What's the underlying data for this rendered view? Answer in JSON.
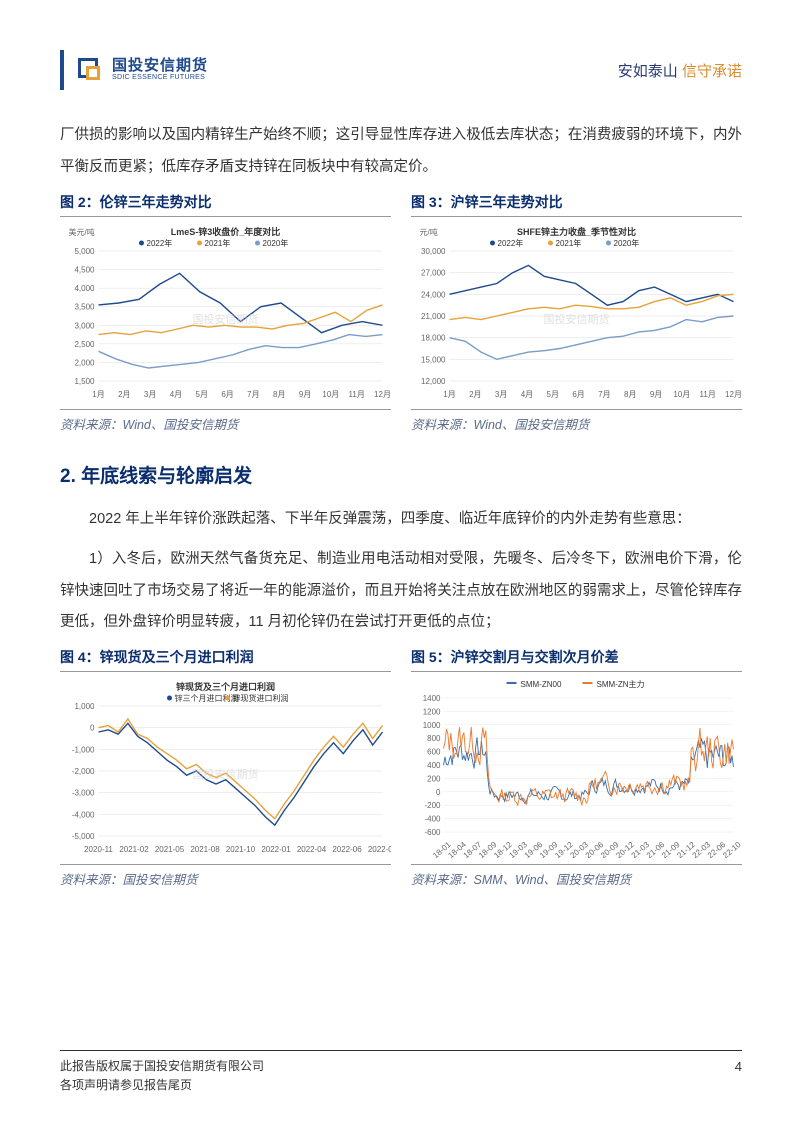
{
  "header": {
    "logo_cn": "国投安信期货",
    "logo_en": "SDIC ESSENCE FUTURES",
    "slogan1": "安如泰山",
    "slogan2": "信守承诺"
  },
  "para1": "厂供损的影响以及国内精锌生产始终不顺；这引导显性库存进入极低去库状态；在消费疲弱的环境下，内外平衡反而更紧；低库存矛盾支持锌在同板块中有较高定价。",
  "chart2": {
    "title": "图 2：伦锌三年走势对比",
    "inner_title": "LmeS-锌3收盘价_年度对比",
    "ylabel": "美元/吨",
    "legend": [
      "2022年",
      "2021年",
      "2020年"
    ],
    "colors": [
      "#1e4a8c",
      "#e8a13a",
      "#7a9cc6"
    ],
    "ylim": [
      1500,
      5000
    ],
    "yticks": [
      1500,
      2000,
      2500,
      3000,
      3500,
      4000,
      4500,
      5000
    ],
    "xlabels": [
      "1月",
      "2月",
      "3月",
      "4月",
      "5月",
      "6月",
      "7月",
      "8月",
      "9月",
      "10月",
      "11月",
      "12月"
    ],
    "s2022": [
      3550,
      3600,
      3700,
      4100,
      4400,
      3900,
      3600,
      3100,
      3500,
      3600,
      3200,
      2800,
      3000,
      3100,
      3000
    ],
    "s2021": [
      2750,
      2800,
      2750,
      2850,
      2800,
      2900,
      3000,
      2950,
      3000,
      2950,
      2950,
      2900,
      3000,
      3050,
      3200,
      3350,
      3100,
      3400,
      3550
    ],
    "s2020": [
      2300,
      2100,
      1950,
      1850,
      1900,
      1950,
      2000,
      2100,
      2200,
      2350,
      2450,
      2400,
      2400,
      2500,
      2600,
      2750,
      2700,
      2750
    ],
    "source": "资料来源：Wind、国投安信期货",
    "watermark": "国投安信期货"
  },
  "chart3": {
    "title": "图 3：沪锌三年走势对比",
    "inner_title": "SHFE锌主力收盘_季节性对比",
    "ylabel": "元/吨",
    "legend": [
      "2022年",
      "2021年",
      "2020年"
    ],
    "colors": [
      "#1e4a8c",
      "#e8a13a",
      "#7a9cc6"
    ],
    "ylim": [
      12000,
      30000
    ],
    "yticks": [
      12000,
      15000,
      18000,
      21000,
      24000,
      27000,
      30000
    ],
    "xlabels": [
      "1月",
      "2月",
      "3月",
      "4月",
      "5月",
      "6月",
      "7月",
      "8月",
      "9月",
      "10月",
      "11月",
      "12月"
    ],
    "s2022": [
      24000,
      24500,
      25000,
      25500,
      27000,
      28000,
      26500,
      26000,
      25500,
      24000,
      22500,
      23000,
      24500,
      25000,
      24000,
      23000,
      23500,
      24000,
      23000
    ],
    "s2021": [
      20500,
      20800,
      20500,
      21000,
      21500,
      22000,
      22200,
      22000,
      22500,
      22300,
      22000,
      22000,
      22200,
      23000,
      23500,
      22500,
      23000,
      23800,
      24000
    ],
    "s2020": [
      18000,
      17500,
      16000,
      15000,
      15500,
      16000,
      16200,
      16500,
      17000,
      17500,
      18000,
      18200,
      18800,
      19000,
      19500,
      20500,
      20200,
      20800,
      21000
    ],
    "source": "资料来源：Wind、国投安信期货",
    "watermark": "国投安信期货"
  },
  "section2_heading": "2. 年底线索与轮廓启发",
  "para2": "2022 年上半年锌价涨跌起落、下半年反弹震荡，四季度、临近年底锌价的内外走势有些意思：",
  "para3": "1）入冬后，欧洲天然气备货充足、制造业用电活动相对受限，先暖冬、后冷冬下，欧洲电价下滑，伦锌快速回吐了市场交易了将近一年的能源溢价，而且开始将关注点放在欧洲地区的弱需求上，尽管伦锌库存更低，但外盘锌价明显转疲，11 月初伦锌仍在尝试打开更低的点位；",
  "chart4": {
    "title": "图 4：锌现货及三个月进口利润",
    "inner_title": "锌现货及三个月进口利润",
    "legend": [
      "锌三个月进口利润",
      "锌现货进口利润"
    ],
    "colors": [
      "#1e4a8c",
      "#e8a13a"
    ],
    "ylim": [
      -5000,
      1000
    ],
    "yticks": [
      -5000,
      -4000,
      -3000,
      -2000,
      -1000,
      0,
      1000
    ],
    "xlabels": [
      "2020-11",
      "2021-02",
      "2021-05",
      "2021-08",
      "2021-10",
      "2022-01",
      "2022-04",
      "2022-06",
      "2022-09"
    ],
    "s1": [
      -200,
      -100,
      -300,
      200,
      -400,
      -700,
      -1100,
      -1500,
      -1800,
      -2200,
      -2000,
      -2400,
      -2600,
      -2400,
      -2800,
      -3200,
      -3600,
      -4100,
      -4500,
      -3800,
      -3200,
      -2500,
      -1800,
      -1200,
      -700,
      -1200,
      -600,
      -100,
      -800,
      -200
    ],
    "s2": [
      0,
      100,
      -200,
      400,
      -300,
      -500,
      -900,
      -1200,
      -1500,
      -1900,
      -1700,
      -2100,
      -2300,
      -2100,
      -2500,
      -2900,
      -3300,
      -3800,
      -4200,
      -3500,
      -2900,
      -2200,
      -1500,
      -900,
      -400,
      -900,
      -300,
      200,
      -500,
      100
    ],
    "source": "资料来源：国投安信期货",
    "watermark": "国投安信期货"
  },
  "chart5": {
    "title": "图 5：沪锌交割月与交割次月价差",
    "legend": [
      "SMM-ZN00",
      "SMM-ZN主力"
    ],
    "colors": [
      "#3a6ea8",
      "#e87a2e"
    ],
    "ylim": [
      -600,
      1400
    ],
    "yticks": [
      -600,
      -400,
      -200,
      0,
      200,
      400,
      600,
      800,
      1000,
      1200,
      1400
    ],
    "xlabels": [
      "18-01",
      "18-04",
      "18-07",
      "18-09",
      "18-12",
      "19-03",
      "19-06",
      "19-09",
      "19-12",
      "20-03",
      "20-06",
      "20-09",
      "20-12",
      "21-03",
      "21-06",
      "21-09",
      "21-12",
      "22-03",
      "22-06",
      "22-10"
    ],
    "source": "资料来源：SMM、Wind、国投安信期货"
  },
  "footer": {
    "line1": "此报告版权属于国投安信期货有限公司",
    "line2": "各项声明请参见报告尾页",
    "page": "4"
  }
}
